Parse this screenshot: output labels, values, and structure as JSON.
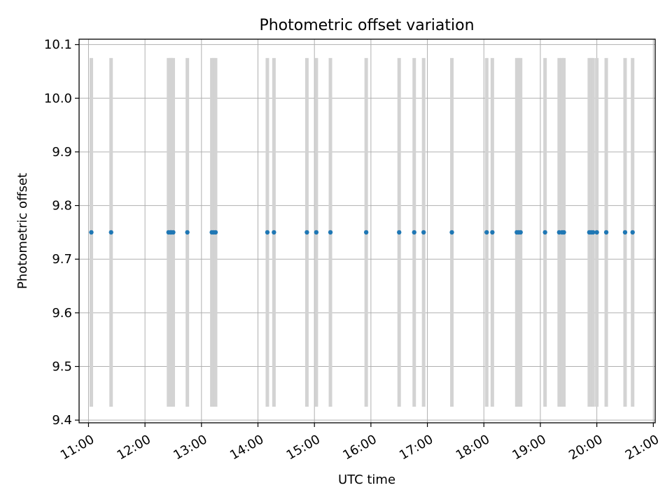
{
  "chart_data": {
    "type": "scatter",
    "title": "Photometric offset variation",
    "xlabel": "UTC time",
    "ylabel": "Photometric offset",
    "x_unit": "hours UTC",
    "xlim": [
      "10:50",
      "21:02"
    ],
    "ylim": [
      9.395,
      10.11
    ],
    "xticks": [
      "11:00",
      "12:00",
      "13:00",
      "14:00",
      "15:00",
      "16:00",
      "17:00",
      "18:00",
      "19:00",
      "20:00",
      "21:00"
    ],
    "yticks": [
      "9.4",
      "9.5",
      "9.6",
      "9.7",
      "9.8",
      "9.9",
      "10.0",
      "10.1"
    ],
    "grid": true,
    "error_bar_color": "#d3d3d3",
    "point_color": "#1f77b4",
    "series": [
      {
        "x": [
          "11:03",
          "11:24",
          "12:25",
          "12:27",
          "12:28",
          "12:30",
          "12:45",
          "13:11",
          "13:13",
          "13:15",
          "14:10",
          "14:17",
          "14:52",
          "15:02",
          "15:17",
          "15:55",
          "16:30",
          "16:46",
          "16:56",
          "17:26",
          "18:03",
          "18:09",
          "18:35",
          "18:37",
          "18:39",
          "19:05",
          "19:20",
          "19:23",
          "19:25",
          "19:52",
          "19:54",
          "19:56",
          "20:00",
          "20:10",
          "20:30",
          "20:38"
        ],
        "y": [
          9.75,
          9.75,
          9.75,
          9.75,
          9.75,
          9.75,
          9.75,
          9.75,
          9.75,
          9.75,
          9.75,
          9.75,
          9.75,
          9.75,
          9.75,
          9.75,
          9.75,
          9.75,
          9.75,
          9.75,
          9.75,
          9.75,
          9.75,
          9.75,
          9.75,
          9.75,
          9.75,
          9.75,
          9.75,
          9.75,
          9.75,
          9.75,
          9.75,
          9.75,
          9.75,
          9.75
        ],
        "error_range": [
          9.425,
          10.075
        ]
      }
    ]
  }
}
